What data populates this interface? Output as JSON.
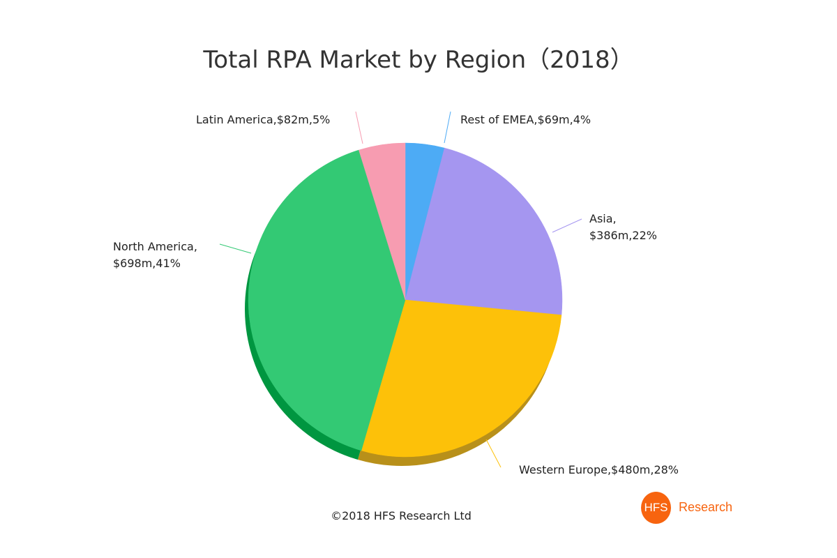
{
  "chart_data": {
    "type": "pie",
    "title": "Total RPA Market by Region（2018）",
    "unit": "$m",
    "start": "top",
    "direction": "clockwise",
    "slices": [
      {
        "name": "Rest of EMEA",
        "value": 69,
        "percent": 4,
        "label": "Rest of EMEA,$69m,4%",
        "color": "#4dabf5",
        "shade": "#2e86c9"
      },
      {
        "name": "Asia",
        "value": 386,
        "percent": 22,
        "label_line1": "Asia,",
        "label_line2": "$386m,22%",
        "color": "#a596f0",
        "shade": "#7d6fcc"
      },
      {
        "name": "Western Europe",
        "value": 480,
        "percent": 28,
        "label": "Western Europe,$480m,28%",
        "color": "#fdc109",
        "shade": "#b8901a"
      },
      {
        "name": "North America",
        "value": 698,
        "percent": 41,
        "label_line1": "North America,",
        "label_line2": "$698m,41%",
        "color": "#33c974",
        "shade": "#009640"
      },
      {
        "name": "Latin America",
        "value": 82,
        "percent": 5,
        "label": "Latin America,$82m,5%",
        "color": "#f79cb1",
        "shade": "#c9738a"
      }
    ]
  },
  "footer": {
    "copyright": "©2018 HFS Research Ltd"
  },
  "logo": {
    "mark": "HFS",
    "text": "Research",
    "color": "#f7640f"
  }
}
